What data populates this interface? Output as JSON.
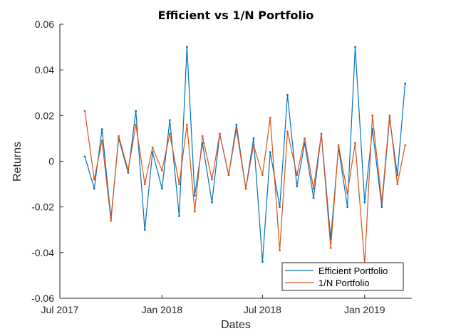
{
  "chart_data": {
    "type": "line",
    "title": "Efficient vs 1/N Portfolio",
    "xlabel": "Dates",
    "ylabel": "Returns",
    "xlim": [
      "2017-07-01",
      "2019-03-27"
    ],
    "ylim": [
      -0.06,
      0.06
    ],
    "x_ticks": [
      {
        "date": "2017-07-01",
        "label": "Jul 2017"
      },
      {
        "date": "2018-01-01",
        "label": "Jan 2018"
      },
      {
        "date": "2018-07-01",
        "label": "Jul 2018"
      },
      {
        "date": "2019-01-01",
        "label": "Jan 2019"
      }
    ],
    "y_ticks": [
      {
        "value": 0.06,
        "label": "0.06"
      },
      {
        "value": 0.04,
        "label": "0.04"
      },
      {
        "value": 0.02,
        "label": "0.02"
      },
      {
        "value": 0,
        "label": "0"
      },
      {
        "value": -0.02,
        "label": "-0.02"
      },
      {
        "value": -0.04,
        "label": "-0.04"
      },
      {
        "value": -0.06,
        "label": "-0.06"
      }
    ],
    "grid": false,
    "legend_position": "bottom-right",
    "x": [
      "2017-08-15",
      "2017-09-01",
      "2017-09-15",
      "2017-10-01",
      "2017-10-15",
      "2017-11-01",
      "2017-11-15",
      "2017-12-01",
      "2017-12-15",
      "2018-01-01",
      "2018-01-15",
      "2018-02-01",
      "2018-02-15",
      "2018-03-01",
      "2018-03-15",
      "2018-04-01",
      "2018-04-15",
      "2018-05-01",
      "2018-05-15",
      "2018-06-01",
      "2018-06-15",
      "2018-07-01",
      "2018-07-15",
      "2018-08-01",
      "2018-08-15",
      "2018-09-01",
      "2018-09-15",
      "2018-10-01",
      "2018-10-15",
      "2018-11-01",
      "2018-11-15",
      "2018-12-01",
      "2018-12-15",
      "2019-01-01",
      "2019-01-15",
      "2019-02-01",
      "2019-02-15",
      "2019-03-01",
      "2019-03-15"
    ],
    "series": [
      {
        "name": "Efficient Portfolio",
        "color": "#0072BD",
        "values": [
          0.002,
          -0.012,
          0.014,
          -0.025,
          0.01,
          -0.005,
          0.022,
          -0.03,
          0.004,
          -0.012,
          0.018,
          -0.024,
          0.05,
          -0.015,
          0.008,
          -0.018,
          0.012,
          -0.006,
          0.016,
          -0.012,
          0.01,
          -0.044,
          0.004,
          -0.02,
          0.029,
          -0.011,
          0.008,
          -0.016,
          0.012,
          -0.034,
          0.006,
          -0.02,
          0.05,
          -0.018,
          0.014,
          -0.02,
          0.019,
          -0.006,
          0.034
        ]
      },
      {
        "name": "1/N Portfolio",
        "color": "#D95319",
        "values": [
          0.022,
          -0.008,
          0.009,
          -0.026,
          0.011,
          -0.004,
          0.016,
          -0.01,
          0.006,
          -0.004,
          0.012,
          -0.01,
          0.016,
          -0.022,
          0.011,
          -0.008,
          0.012,
          -0.006,
          0.014,
          -0.012,
          0.007,
          -0.006,
          0.019,
          -0.039,
          0.013,
          -0.006,
          0.01,
          -0.012,
          0.012,
          -0.038,
          0.007,
          -0.014,
          0.008,
          -0.045,
          0.02,
          -0.018,
          0.02,
          -0.01,
          0.007
        ]
      }
    ]
  }
}
